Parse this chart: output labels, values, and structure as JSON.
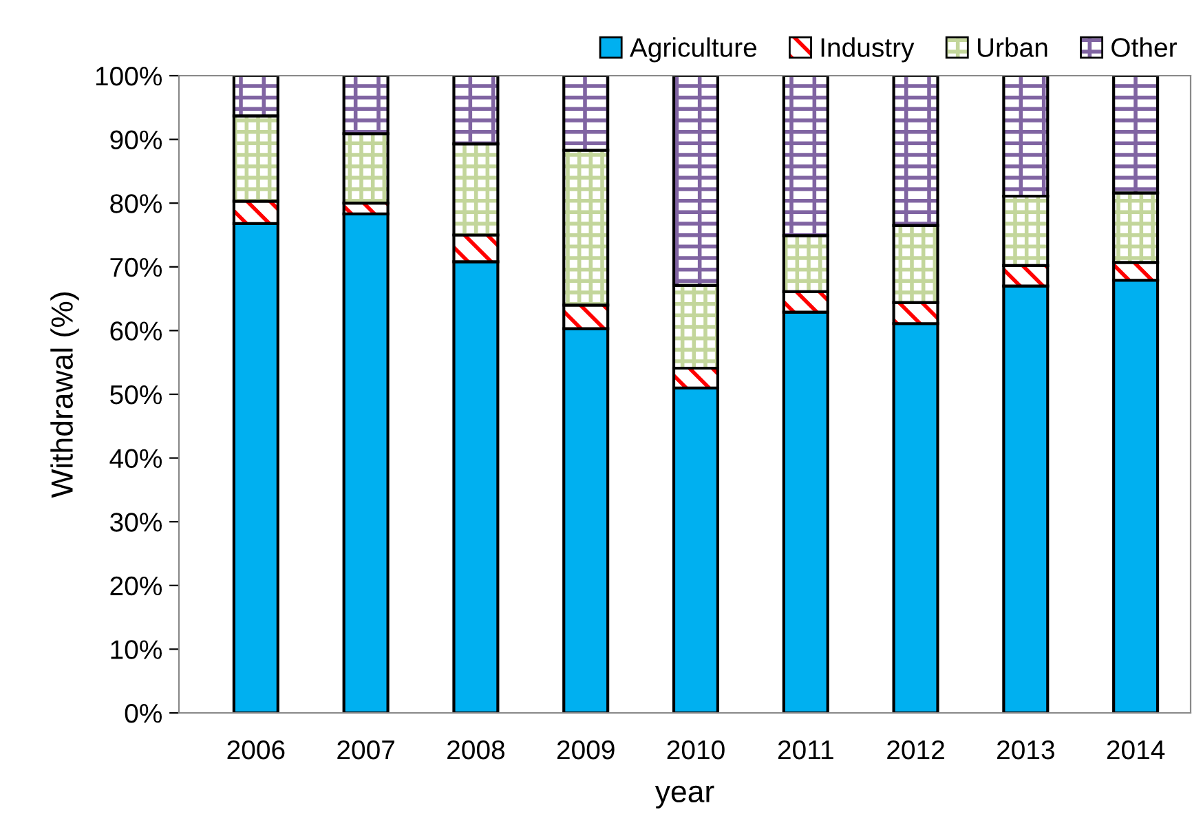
{
  "chart_data": {
    "type": "bar",
    "stacked": true,
    "xlabel": "year",
    "ylabel": "Withdrawal (%)",
    "categories": [
      "2006",
      "2007",
      "2008",
      "2009",
      "2010",
      "2011",
      "2012",
      "2013",
      "2014"
    ],
    "series": [
      {
        "name": "Agriculture",
        "color": "#00b0f0",
        "values": [
          76.8,
          78.3,
          70.8,
          60.3,
          51.0,
          62.9,
          61.1,
          67.0,
          67.9
        ]
      },
      {
        "name": "Industry",
        "color": "#ff0000",
        "values": [
          3.5,
          1.7,
          4.2,
          3.7,
          3.1,
          3.2,
          3.3,
          3.2,
          2.8
        ]
      },
      {
        "name": "Urban",
        "color": "#c3d69b",
        "values": [
          13.4,
          10.9,
          14.3,
          24.3,
          13.0,
          8.8,
          12.1,
          10.9,
          10.9
        ]
      },
      {
        "name": "Other",
        "color": "#8064a2",
        "values": [
          6.3,
          9.1,
          10.7,
          11.7,
          32.9,
          25.1,
          23.5,
          18.9,
          18.4
        ]
      }
    ],
    "ylim": [
      0,
      100
    ],
    "yticks": [
      {
        "value": 0,
        "label": "0%"
      },
      {
        "value": 10,
        "label": "10%"
      },
      {
        "value": 20,
        "label": "20%"
      },
      {
        "value": 30,
        "label": "30%"
      },
      {
        "value": 40,
        "label": "40%"
      },
      {
        "value": 50,
        "label": "50%"
      },
      {
        "value": 60,
        "label": "60%"
      },
      {
        "value": 70,
        "label": "70%"
      },
      {
        "value": 80,
        "label": "80%"
      },
      {
        "value": 90,
        "label": "90%"
      },
      {
        "value": 100,
        "label": "100%"
      }
    ],
    "grid": false,
    "legend": "top right"
  }
}
